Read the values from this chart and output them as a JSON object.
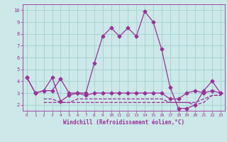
{
  "xlabel": "Windchill (Refroidissement éolien,°C)",
  "background_color": "#cce8e8",
  "grid_color": "#99cccc",
  "line_color": "#993399",
  "xlim": [
    -0.5,
    23.5
  ],
  "ylim": [
    1.5,
    10.5
  ],
  "xticks": [
    0,
    1,
    2,
    3,
    4,
    5,
    6,
    7,
    8,
    9,
    10,
    11,
    12,
    13,
    14,
    15,
    16,
    17,
    18,
    19,
    20,
    21,
    22,
    23
  ],
  "yticks": [
    2,
    3,
    4,
    5,
    6,
    7,
    8,
    9,
    10
  ],
  "curve_main_x": [
    0,
    1,
    2,
    3,
    4,
    5,
    6,
    7,
    8,
    9,
    10,
    11,
    12,
    13,
    14,
    15,
    16,
    17,
    18,
    19,
    20,
    21,
    22,
    23
  ],
  "curve_main_y": [
    4.3,
    3.0,
    3.2,
    4.3,
    2.3,
    2.8,
    3.0,
    3.0,
    5.5,
    7.8,
    8.5,
    7.8,
    8.5,
    7.8,
    9.9,
    9.0,
    6.7,
    3.5,
    1.7,
    1.7,
    2.0,
    3.2,
    4.0,
    3.0
  ],
  "curve_flat_x": [
    0,
    1,
    2,
    3,
    4,
    5,
    6,
    7,
    8,
    9,
    10,
    11,
    12,
    13,
    14,
    15,
    16,
    17,
    18,
    19,
    20,
    21,
    22,
    23
  ],
  "curve_flat_y": [
    4.3,
    3.0,
    3.2,
    3.2,
    4.2,
    3.0,
    3.0,
    2.8,
    3.0,
    3.0,
    3.0,
    3.0,
    3.0,
    3.0,
    3.0,
    3.0,
    3.0,
    2.5,
    2.5,
    3.0,
    3.2,
    3.0,
    3.2,
    3.0
  ],
  "curve_dashed1_x": [
    2,
    3,
    4,
    5,
    6,
    7,
    8,
    9,
    10,
    11,
    12,
    13,
    14,
    15,
    16,
    17,
    18,
    19,
    20,
    21,
    22,
    23
  ],
  "curve_dashed1_y": [
    2.5,
    2.5,
    2.2,
    2.2,
    2.5,
    2.5,
    2.5,
    2.5,
    2.5,
    2.5,
    2.5,
    2.5,
    2.5,
    2.5,
    2.5,
    2.2,
    2.2,
    2.2,
    2.2,
    2.5,
    2.8,
    2.8
  ],
  "curve_dashed2_x": [
    2,
    3,
    4,
    5,
    6,
    7,
    8,
    9,
    10,
    11,
    12,
    13,
    14,
    15,
    16,
    17,
    18,
    19,
    20,
    21,
    22,
    23
  ],
  "curve_dashed2_y": [
    2.2,
    2.2,
    2.2,
    2.2,
    2.2,
    2.2,
    2.2,
    2.2,
    2.2,
    2.2,
    2.2,
    2.2,
    2.2,
    2.2,
    2.2,
    2.2,
    2.2,
    2.2,
    2.0,
    2.2,
    2.8,
    2.8
  ],
  "marker_size": 2.5,
  "linewidth": 0.9,
  "xlabel_fontsize": 5.5,
  "tick_fontsize": 5.0
}
